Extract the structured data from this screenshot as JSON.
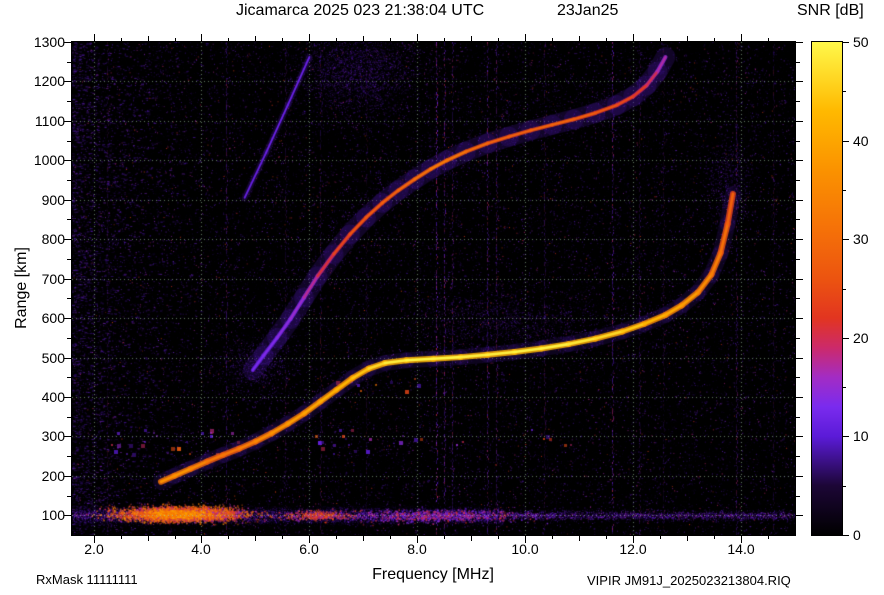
{
  "header": {
    "title": "Jicamarca 2025 023 21:38:04 UTC",
    "date": "23Jan25"
  },
  "colorbar": {
    "title": "SNR [dB]",
    "min": 0,
    "max": 50,
    "major_tick_step": 10,
    "minor_tick_step": 5,
    "tick_labels": [
      "0",
      "10",
      "20",
      "30",
      "40",
      "50"
    ],
    "stops": [
      [
        0.0,
        "#000000"
      ],
      [
        0.1,
        "#1c0636"
      ],
      [
        0.2,
        "#5b1bd8"
      ],
      [
        0.26,
        "#7a2bee"
      ],
      [
        0.32,
        "#a32cc4"
      ],
      [
        0.38,
        "#cc2a6a"
      ],
      [
        0.44,
        "#e23520"
      ],
      [
        0.52,
        "#ec5410"
      ],
      [
        0.62,
        "#f57108"
      ],
      [
        0.74,
        "#fb9200"
      ],
      [
        0.86,
        "#ffb900"
      ],
      [
        1.0,
        "#fff84a"
      ]
    ]
  },
  "axes": {
    "x": {
      "label": "Frequency [MHz]",
      "min": 1.6,
      "max": 15.0,
      "major": [
        2,
        4,
        6,
        8,
        10,
        12,
        14
      ],
      "labels": [
        "2.0",
        "4.0",
        "6.0",
        "8.0",
        "10.0",
        "12.0",
        "14.0"
      ],
      "minor_step": 0.5
    },
    "y": {
      "label": "Range [km]",
      "min": 50,
      "max": 1300,
      "major": [
        100,
        200,
        300,
        400,
        500,
        600,
        700,
        800,
        900,
        1000,
        1100,
        1200,
        1300
      ],
      "labels": [
        "100",
        "200",
        "300",
        "400",
        "500",
        "600",
        "700",
        "800",
        "900",
        "1000",
        "1100",
        "1200",
        "1300"
      ],
      "minor_step": 50
    }
  },
  "footer": {
    "rx_mask": "RxMask 11111111",
    "file": "VIPIR  JM91J_2025023213804.RIQ"
  },
  "chart_data": {
    "type": "heatmap",
    "title": "Jicamarca 2025 023 21:38:04 UTC  23Jan25",
    "xlabel": "Frequency [MHz]",
    "ylabel": "Range [km]",
    "value_label": "SNR [dB]",
    "value_range": [
      0,
      50
    ],
    "xlim": [
      1.6,
      15.0
    ],
    "ylim": [
      50,
      1300
    ],
    "grid": true,
    "noise": {
      "speckle_n": 52000,
      "seed": 20250123
    },
    "traces": [
      {
        "name": "F-region echo trace first hop",
        "style": {
          "glow_w": 16,
          "glow_a": 0.2,
          "mid_w": 6,
          "core_w": 2.6,
          "t0": 0.3,
          "ts": 0.7,
          "fuzz": {
            "sigma": 5,
            "density": 1.2,
            "up": 1.2,
            "down": 1.0
          }
        },
        "points": [
          [
            3.25,
            185,
            0.58
          ],
          [
            3.5,
            200,
            0.66
          ],
          [
            3.8,
            218,
            0.62
          ],
          [
            4.1,
            236,
            0.52
          ],
          [
            4.4,
            253,
            0.47
          ],
          [
            4.7,
            269,
            0.5
          ],
          [
            5.0,
            287,
            0.55
          ],
          [
            5.3,
            308,
            0.61
          ],
          [
            5.6,
            332,
            0.66
          ],
          [
            5.9,
            358,
            0.7
          ],
          [
            6.2,
            388,
            0.74
          ],
          [
            6.5,
            418,
            0.77
          ],
          [
            6.8,
            448,
            0.81
          ],
          [
            7.1,
            472,
            0.87
          ],
          [
            7.4,
            486,
            0.94
          ],
          [
            7.8,
            493,
            1.0
          ],
          [
            8.3,
            497,
            1.0
          ],
          [
            8.8,
            501,
            0.98
          ],
          [
            9.3,
            507,
            0.97
          ],
          [
            9.8,
            514,
            0.98
          ],
          [
            10.3,
            523,
            1.0
          ],
          [
            10.8,
            534,
            0.97
          ],
          [
            11.3,
            548,
            0.93
          ],
          [
            11.8,
            566,
            0.88
          ],
          [
            12.2,
            585,
            0.82
          ],
          [
            12.6,
            608,
            0.76
          ],
          [
            12.9,
            632,
            0.71
          ],
          [
            13.2,
            665,
            0.65
          ],
          [
            13.45,
            710,
            0.57
          ],
          [
            13.62,
            765,
            0.49
          ],
          [
            13.75,
            838,
            0.42
          ],
          [
            13.85,
            915,
            0.34
          ]
        ]
      },
      {
        "name": "second hop spread echo",
        "style": {
          "glow_w": 20,
          "glow_a": 0.26,
          "mid_w": 4,
          "core_w": 2,
          "t0": 0.2,
          "ts": 0.62,
          "fuzz": {
            "sigma": 13,
            "density": 3.5,
            "up": 1.8,
            "down": 0.55
          }
        },
        "points": [
          [
            4.95,
            468,
            0.08
          ],
          [
            5.15,
            505,
            0.1
          ],
          [
            5.4,
            550,
            0.12
          ],
          [
            5.65,
            598,
            0.15
          ],
          [
            5.9,
            652,
            0.2
          ],
          [
            6.15,
            706,
            0.3
          ],
          [
            6.45,
            762,
            0.42
          ],
          [
            6.75,
            812,
            0.5
          ],
          [
            7.05,
            855,
            0.55
          ],
          [
            7.35,
            892,
            0.58
          ],
          [
            7.65,
            924,
            0.62
          ],
          [
            7.95,
            952,
            0.66
          ],
          [
            8.25,
            978,
            0.72
          ],
          [
            8.55,
            1000,
            0.74
          ],
          [
            8.9,
            1022,
            0.68
          ],
          [
            9.3,
            1043,
            0.62
          ],
          [
            9.7,
            1060,
            0.6
          ],
          [
            10.1,
            1076,
            0.6
          ],
          [
            10.5,
            1090,
            0.62
          ],
          [
            10.9,
            1104,
            0.6
          ],
          [
            11.3,
            1120,
            0.55
          ],
          [
            11.7,
            1140,
            0.5
          ],
          [
            12.0,
            1162,
            0.45
          ],
          [
            12.25,
            1190,
            0.38
          ],
          [
            12.45,
            1225,
            0.28
          ],
          [
            12.6,
            1262,
            0.18
          ]
        ]
      },
      {
        "name": "oblique streak",
        "style": {
          "glow_w": 6,
          "glow_a": 0.3,
          "mid_w": 2,
          "core_w": 1.2,
          "t0": 0.15,
          "ts": 0.5,
          "fuzz": {
            "sigma": 3,
            "density": 1.0,
            "up": 1.0,
            "down": 1.0
          }
        },
        "points": [
          [
            4.8,
            905,
            0.14
          ],
          [
            5.2,
            1020,
            0.17
          ],
          [
            5.6,
            1140,
            0.18
          ],
          [
            6.0,
            1262,
            0.16
          ]
        ]
      }
    ],
    "e_region": {
      "center_km": 100,
      "spread_km": 14,
      "thin_above_mhz": 9.6,
      "blobs": [
        {
          "f": 3.6,
          "fs": 0.55,
          "r": 104,
          "rs": 9,
          "n": 4200,
          "t0": 0.3,
          "t1": 0.75
        },
        {
          "f": 3.55,
          "fs": 0.3,
          "r": 104,
          "rs": 5,
          "n": 900,
          "t0": 0.55,
          "t1": 0.85
        },
        {
          "f": 6.15,
          "fs": 0.3,
          "r": 101,
          "rs": 6,
          "n": 400,
          "t0": 0.3,
          "t1": 0.6
        },
        {
          "f": 8.3,
          "fs": 0.8,
          "r": 100,
          "rs": 8,
          "n": 900,
          "t0": 0.15,
          "t1": 0.45
        }
      ]
    },
    "rfi_lines_mhz": [
      {
        "f": 2.25,
        "a": 0.2
      },
      {
        "f": 4.45,
        "a": 0.45
      },
      {
        "f": 5.55,
        "a": 0.25
      },
      {
        "f": 6.2,
        "a": 0.3
      },
      {
        "f": 7.05,
        "a": 0.2
      },
      {
        "f": 8.35,
        "a": 0.8
      },
      {
        "f": 8.5,
        "a": 0.6
      },
      {
        "f": 8.65,
        "a": 0.45
      },
      {
        "f": 9.3,
        "a": 0.6
      },
      {
        "f": 9.45,
        "a": 0.45
      },
      {
        "f": 10.35,
        "a": 0.3
      },
      {
        "f": 11.6,
        "a": 0.7
      },
      {
        "f": 12.1,
        "a": 0.35
      },
      {
        "f": 12.55,
        "a": 0.2
      },
      {
        "f": 13.9,
        "a": 0.45
      },
      {
        "f": 14.6,
        "a": 0.25
      }
    ],
    "interference_blocks": [
      {
        "f0": 2.3,
        "f1": 4.7,
        "r0": 255,
        "r1": 320,
        "n": 26
      },
      {
        "f0": 6.1,
        "f1": 8.9,
        "r0": 258,
        "r1": 322,
        "n": 22
      },
      {
        "f0": 6.3,
        "f1": 8.9,
        "r0": 415,
        "r1": 455,
        "n": 10
      },
      {
        "f0": 9.9,
        "f1": 10.9,
        "r0": 280,
        "r1": 320,
        "n": 6
      }
    ],
    "diffuse_clouds": [
      {
        "f": 6.9,
        "fs": 0.55,
        "r": 1225,
        "rs": 55,
        "n": 3000
      },
      {
        "f": 9.7,
        "fs": 0.95,
        "r": 592,
        "rs": 40,
        "n": 1600
      },
      {
        "f": 13.78,
        "fs": 0.2,
        "r": 950,
        "rs": 55,
        "n": 700
      },
      {
        "f": 5.0,
        "fs": 0.35,
        "r": 480,
        "rs": 35,
        "n": 900
      }
    ]
  }
}
